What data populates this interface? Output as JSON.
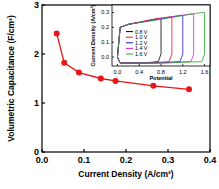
{
  "chart_data": [
    {
      "type": "line",
      "x_label": "Current Density (A/cm²)",
      "y_label": "Volumetric Capacitance (F/cm³)",
      "x": [
        0.035,
        0.053,
        0.088,
        0.14,
        0.175,
        0.265,
        0.35
      ],
      "values": [
        2.42,
        1.82,
        1.62,
        1.5,
        1.45,
        1.35,
        1.28
      ],
      "color": "#e8151b",
      "marker": "circle",
      "line_style": "solid",
      "xlim": [
        0,
        0.4
      ],
      "xticks": [
        {
          "value": 0,
          "label": "0.0"
        },
        0.1,
        0.2,
        0.3,
        0.4
      ],
      "ylim": [
        0,
        3
      ],
      "yticks": [
        0,
        1,
        2,
        3
      ]
    },
    {
      "type": "line",
      "x_label": "Potential",
      "y_label": "Current Density (A/cm³)",
      "legend": "lower left",
      "xlim": [
        -0.1,
        1.7
      ],
      "xticks": [
        {
          "value": 0,
          "label": "0.0"
        },
        0.4,
        0.8,
        1.2,
        1.6
      ],
      "ylim": [
        -0.06,
        0.35
      ],
      "yticks": [
        {
          "value": 0,
          "label": "0.0"
        },
        0.1,
        0.2,
        0.3
      ],
      "series": [
        {
          "name": "0.8 V",
          "color": "#000000",
          "x": [
            0,
            0.05,
            0.2,
            0.5,
            0.75,
            0.8,
            0.8,
            0.75,
            0.5,
            0.2,
            0.05,
            0
          ],
          "values": [
            0,
            0.2,
            0.22,
            0.24,
            0.26,
            0.26,
            0.02,
            -0.03,
            -0.04,
            -0.04,
            -0.04,
            0
          ]
        },
        {
          "name": "1.0 V",
          "color": "#e8151b",
          "x": [
            0,
            0.05,
            0.2,
            0.6,
            0.95,
            1.0,
            1.0,
            0.95,
            0.6,
            0.2,
            0.05,
            0
          ],
          "values": [
            0,
            0.2,
            0.22,
            0.25,
            0.27,
            0.27,
            0.02,
            -0.03,
            -0.04,
            -0.04,
            -0.04,
            0
          ]
        },
        {
          "name": "1.2 V",
          "color": "#1a1ae6",
          "x": [
            0,
            0.05,
            0.2,
            0.7,
            1.15,
            1.2,
            1.2,
            1.15,
            0.7,
            0.2,
            0.05,
            0
          ],
          "values": [
            0,
            0.2,
            0.22,
            0.25,
            0.28,
            0.28,
            0.02,
            -0.03,
            -0.04,
            -0.04,
            -0.04,
            0
          ]
        },
        {
          "name": "1.4 V",
          "color": "#e020e0",
          "x": [
            0,
            0.05,
            0.2,
            0.8,
            1.35,
            1.4,
            1.4,
            1.35,
            0.8,
            0.2,
            0.05,
            0
          ],
          "values": [
            0,
            0.2,
            0.22,
            0.26,
            0.29,
            0.29,
            0.02,
            -0.03,
            -0.04,
            -0.04,
            -0.04,
            0
          ]
        },
        {
          "name": "1.6 V",
          "color": "#2aa52a",
          "x": [
            0,
            0.05,
            0.2,
            0.9,
            1.55,
            1.6,
            1.6,
            1.55,
            0.9,
            0.2,
            0.05,
            0
          ],
          "values": [
            0,
            0.2,
            0.22,
            0.26,
            0.3,
            0.3,
            0.02,
            -0.03,
            -0.04,
            -0.04,
            -0.04,
            0
          ]
        }
      ]
    }
  ]
}
